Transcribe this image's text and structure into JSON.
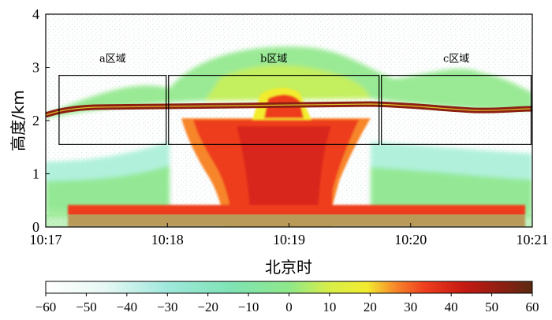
{
  "chart_data": {
    "type": "heatmap",
    "xlabel": "北京时",
    "ylabel": "高度/km",
    "x_ticks": [
      "10:17",
      "10:18",
      "10:19",
      "10:20",
      "10:21"
    ],
    "y_ticks": [
      "0",
      "1",
      "2",
      "3",
      "4"
    ],
    "xlim": [
      "10:17",
      "10:21"
    ],
    "ylim": [
      0,
      4
    ],
    "colorbar": {
      "ticks": [
        "-60",
        "-50",
        "-40",
        "-30",
        "-20",
        "-10",
        "0",
        "10",
        "20",
        "30",
        "40",
        "50",
        "60"
      ],
      "range": [
        -60,
        60
      ],
      "colors": [
        "#ffffff",
        "#e8f8f4",
        "#b8ede4",
        "#7fe0d2",
        "#7fe3b5",
        "#8fe88a",
        "#c9ef5a",
        "#f2ec2f",
        "#fbc02a",
        "#f7852a",
        "#ee3d1e",
        "#c51a12",
        "#8c1f12",
        "#5a2a12"
      ]
    },
    "regions": [
      {
        "label": "a区域",
        "x_start": "10:17.1",
        "x_end": "10:18.0",
        "y_start": 1.55,
        "y_end": 2.85
      },
      {
        "label": "b区域",
        "x_start": "10:18.0",
        "x_end": "10:19.75",
        "y_start": 1.55,
        "y_end": 2.85
      },
      {
        "label": "c区域",
        "x_start": "10:19.75",
        "x_end": "10:21.0",
        "y_start": 1.55,
        "y_end": 2.85
      }
    ],
    "bright_band_height_km": 2.15,
    "grid": false,
    "legend": "colorbar-bottom"
  }
}
